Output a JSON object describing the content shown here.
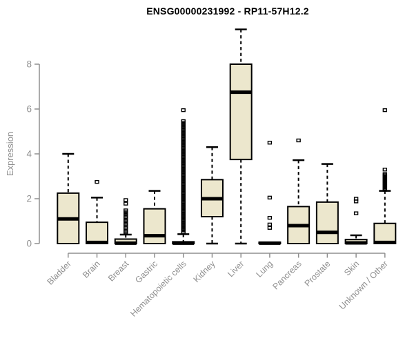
{
  "title": "ENSG00000231992 - RP11-57H12.2",
  "y_axis": {
    "label": "Expression",
    "tick_labels": [
      "0",
      "2",
      "4",
      "6",
      "8"
    ]
  },
  "colors": {
    "box_fill": "#ece7cd",
    "box_stroke": "#000000",
    "median": "#000000",
    "whisker": "#000000",
    "outlier": "#000000",
    "axis": "#8f8f8f",
    "tick_text": "#8f8f8f",
    "title_text": "#000000"
  },
  "chart_data": {
    "type": "box",
    "title": "ENSG00000231992 - RP11-57H12.2",
    "xlabel": "",
    "ylabel": "Expression",
    "ylim": [
      0,
      9.6
    ],
    "yticks": [
      0,
      2,
      4,
      6,
      8
    ],
    "grid": false,
    "categories": [
      "Bladder",
      "Brain",
      "Breast",
      "Gastric",
      "Hematopoietic cells",
      "Kidney",
      "Liver",
      "Lung",
      "Pancreas",
      "Prostate",
      "Skin",
      "Unknown / Other"
    ],
    "series": [
      {
        "name": "Bladder",
        "q1": 0.0,
        "median": 1.1,
        "q3": 2.25,
        "whisker_low": 0.0,
        "whisker_high": 4.0,
        "outliers": []
      },
      {
        "name": "Brain",
        "q1": 0.0,
        "median": 0.05,
        "q3": 0.95,
        "whisker_low": 0.0,
        "whisker_high": 2.05,
        "outliers": [
          2.75
        ]
      },
      {
        "name": "Breast",
        "q1": 0.0,
        "median": 0.02,
        "q3": 0.2,
        "whisker_low": 0.0,
        "whisker_high": 0.4,
        "outliers": [
          0.46,
          0.52,
          0.58,
          0.64,
          0.7,
          0.76,
          0.82,
          0.88,
          0.94,
          1.0,
          1.06,
          1.12,
          1.18,
          1.25,
          1.32,
          1.4,
          1.48,
          1.78,
          1.94
        ]
      },
      {
        "name": "Gastric",
        "q1": 0.0,
        "median": 0.35,
        "q3": 1.55,
        "whisker_low": 0.0,
        "whisker_high": 2.35,
        "outliers": []
      },
      {
        "name": "Hematopoietic cells",
        "q1": 0.0,
        "median": 0.02,
        "q3": 0.08,
        "whisker_low": 0.0,
        "whisker_high": 0.42,
        "outliers": [
          0.5,
          0.58,
          0.66,
          0.74,
          0.82,
          0.9,
          0.98,
          1.06,
          1.14,
          1.22,
          1.3,
          1.38,
          1.46,
          1.54,
          1.62,
          1.7,
          1.78,
          1.86,
          1.94,
          2.02,
          2.1,
          2.18,
          2.26,
          2.34,
          2.42,
          2.5,
          2.58,
          2.66,
          2.74,
          2.82,
          2.9,
          2.98,
          3.06,
          3.14,
          3.22,
          3.3,
          3.38,
          3.46,
          3.54,
          3.62,
          3.7,
          3.78,
          3.86,
          3.94,
          4.02,
          4.1,
          4.18,
          4.26,
          4.34,
          4.42,
          4.5,
          4.58,
          4.66,
          4.74,
          4.82,
          4.9,
          4.98,
          5.06,
          5.14,
          5.22,
          5.3,
          5.38,
          5.46,
          5.95
        ]
      },
      {
        "name": "Kidney",
        "q1": 1.2,
        "median": 2.0,
        "q3": 2.85,
        "whisker_low": 0.0,
        "whisker_high": 4.3,
        "outliers": []
      },
      {
        "name": "Liver",
        "q1": 3.75,
        "median": 6.75,
        "q3": 8.0,
        "whisker_low": 0.0,
        "whisker_high": 9.55,
        "outliers": []
      },
      {
        "name": "Lung",
        "q1": 0.0,
        "median": 0.02,
        "q3": 0.06,
        "whisker_low": 0.0,
        "whisker_high": 0.06,
        "outliers": [
          4.5,
          2.05,
          1.15,
          0.85,
          0.7
        ]
      },
      {
        "name": "Pancreas",
        "q1": 0.0,
        "median": 0.8,
        "q3": 1.65,
        "whisker_low": 0.0,
        "whisker_high": 3.72,
        "outliers": [
          4.6
        ]
      },
      {
        "name": "Prostate",
        "q1": 0.0,
        "median": 0.5,
        "q3": 1.85,
        "whisker_low": 0.0,
        "whisker_high": 3.55,
        "outliers": []
      },
      {
        "name": "Skin",
        "q1": 0.0,
        "median": 0.03,
        "q3": 0.18,
        "whisker_low": 0.0,
        "whisker_high": 0.37,
        "outliers": [
          2.0,
          1.88,
          1.35
        ]
      },
      {
        "name": "Unknown / Other",
        "q1": 0.0,
        "median": 0.05,
        "q3": 0.9,
        "whisker_low": 0.0,
        "whisker_high": 2.35,
        "outliers": [
          2.4,
          2.45,
          2.5,
          2.55,
          2.6,
          2.65,
          2.7,
          2.75,
          2.8,
          2.85,
          2.9,
          2.95,
          3.0,
          3.05,
          3.1,
          3.3,
          5.95
        ]
      }
    ]
  }
}
